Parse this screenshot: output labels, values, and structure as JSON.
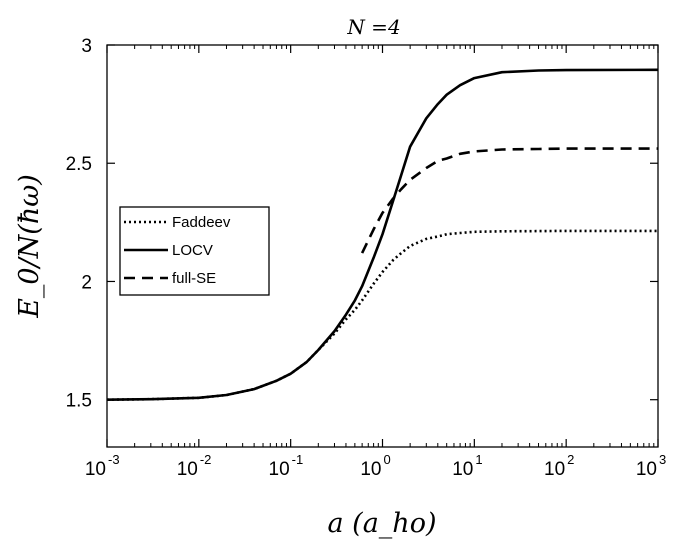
{
  "chart_data": {
    "type": "line",
    "title": "N =4",
    "xlabel": "a (a_ho)",
    "ylabel": "E_0/N(ħω)",
    "x_scale": "log",
    "xlim": [
      0.001,
      1000
    ],
    "ylim": [
      1.3,
      3.0
    ],
    "x_ticks": [
      {
        "value": 0.001,
        "base": "10",
        "exponent": "-3"
      },
      {
        "value": 0.01,
        "base": "10",
        "exponent": "-2"
      },
      {
        "value": 0.1,
        "base": "10",
        "exponent": "-1"
      },
      {
        "value": 1,
        "base": "10",
        "exponent": "0"
      },
      {
        "value": 10,
        "base": "10",
        "exponent": "1"
      },
      {
        "value": 100,
        "base": "10",
        "exponent": "2"
      },
      {
        "value": 1000,
        "base": "10",
        "exponent": "3"
      }
    ],
    "y_ticks": [
      {
        "value": 1.5,
        "label": "1.5"
      },
      {
        "value": 2.0,
        "label": "2"
      },
      {
        "value": 2.5,
        "label": "2.5"
      },
      {
        "value": 3.0,
        "label": "3"
      }
    ],
    "grid": false,
    "legend_position": "left-center",
    "series": [
      {
        "name": "Faddeev",
        "style": "dotted",
        "color": "#000000",
        "x": [
          0.001,
          0.003,
          0.01,
          0.02,
          0.04,
          0.07,
          0.1,
          0.15,
          0.2,
          0.3,
          0.4,
          0.5,
          0.6,
          0.8,
          1.0,
          1.3,
          1.6,
          2,
          3,
          4,
          5,
          7,
          10,
          20,
          50,
          100,
          1000
        ],
        "y": [
          1.5,
          1.502,
          1.508,
          1.52,
          1.545,
          1.58,
          1.61,
          1.66,
          1.71,
          1.78,
          1.84,
          1.88,
          1.92,
          1.99,
          2.04,
          2.09,
          2.12,
          2.15,
          2.18,
          2.19,
          2.2,
          2.205,
          2.21,
          2.212,
          2.213,
          2.214,
          2.214
        ]
      },
      {
        "name": "LOCV",
        "style": "solid",
        "color": "#000000",
        "x": [
          0.001,
          0.003,
          0.01,
          0.02,
          0.04,
          0.07,
          0.1,
          0.15,
          0.2,
          0.3,
          0.4,
          0.5,
          0.6,
          0.8,
          1.0,
          1.3,
          1.6,
          2,
          3,
          4,
          5,
          7,
          10,
          20,
          50,
          100,
          1000
        ],
        "y": [
          1.5,
          1.502,
          1.508,
          1.52,
          1.545,
          1.58,
          1.61,
          1.66,
          1.71,
          1.79,
          1.86,
          1.92,
          1.98,
          2.1,
          2.2,
          2.34,
          2.45,
          2.57,
          2.69,
          2.75,
          2.79,
          2.83,
          2.86,
          2.885,
          2.892,
          2.894,
          2.895
        ]
      },
      {
        "name": "full-SE",
        "style": "dashed",
        "color": "#000000",
        "x": [
          0.6,
          0.8,
          1.0,
          1.3,
          1.6,
          2,
          3,
          4,
          5,
          7,
          10,
          20,
          50,
          100,
          1000
        ],
        "y": [
          2.12,
          2.22,
          2.29,
          2.35,
          2.39,
          2.43,
          2.48,
          2.51,
          2.52,
          2.54,
          2.55,
          2.558,
          2.56,
          2.562,
          2.562
        ]
      }
    ]
  }
}
